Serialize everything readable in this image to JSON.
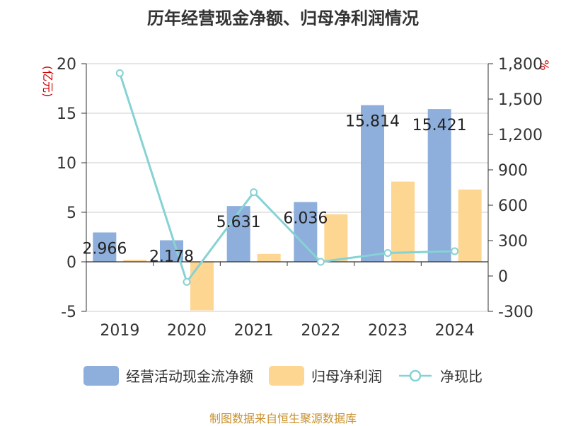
{
  "chart_data": {
    "type": "bar",
    "title": "历年经营现金净额、归母净利润情况",
    "categories": [
      "2019",
      "2020",
      "2021",
      "2022",
      "2023",
      "2024"
    ],
    "left_axis": {
      "label": "(亿元)",
      "min": -5,
      "max": 20,
      "ticks": [
        -5,
        0,
        5,
        10,
        15,
        20
      ]
    },
    "right_axis": {
      "label": "%",
      "min": -300,
      "max": 1800,
      "ticks": [
        "-300",
        "0",
        "300",
        "600",
        "900",
        "1,200",
        "1,500",
        "1,800"
      ]
    },
    "series": [
      {
        "name": "经营活动现金流净额",
        "type": "bar",
        "axis": "left",
        "color": "#8eaedb",
        "values": [
          2.966,
          2.178,
          5.631,
          6.036,
          15.814,
          15.421
        ]
      },
      {
        "name": "归母净利润",
        "type": "bar",
        "axis": "left",
        "color": "#fdd692",
        "values": [
          0.2,
          -4.9,
          0.8,
          4.8,
          8.1,
          7.3
        ]
      },
      {
        "name": "净现比",
        "type": "line",
        "axis": "right",
        "color": "#86d2d4",
        "values": [
          1720,
          -50,
          710,
          120,
          195,
          210
        ]
      }
    ],
    "data_labels": [
      "2.966",
      "2.178",
      "5.631",
      "6.036",
      "15.814",
      "15.421"
    ],
    "grid": true,
    "legend_position": "bottom"
  },
  "source_text": "制图数据来自恒生聚源数据库",
  "source_color": "#c8912e"
}
